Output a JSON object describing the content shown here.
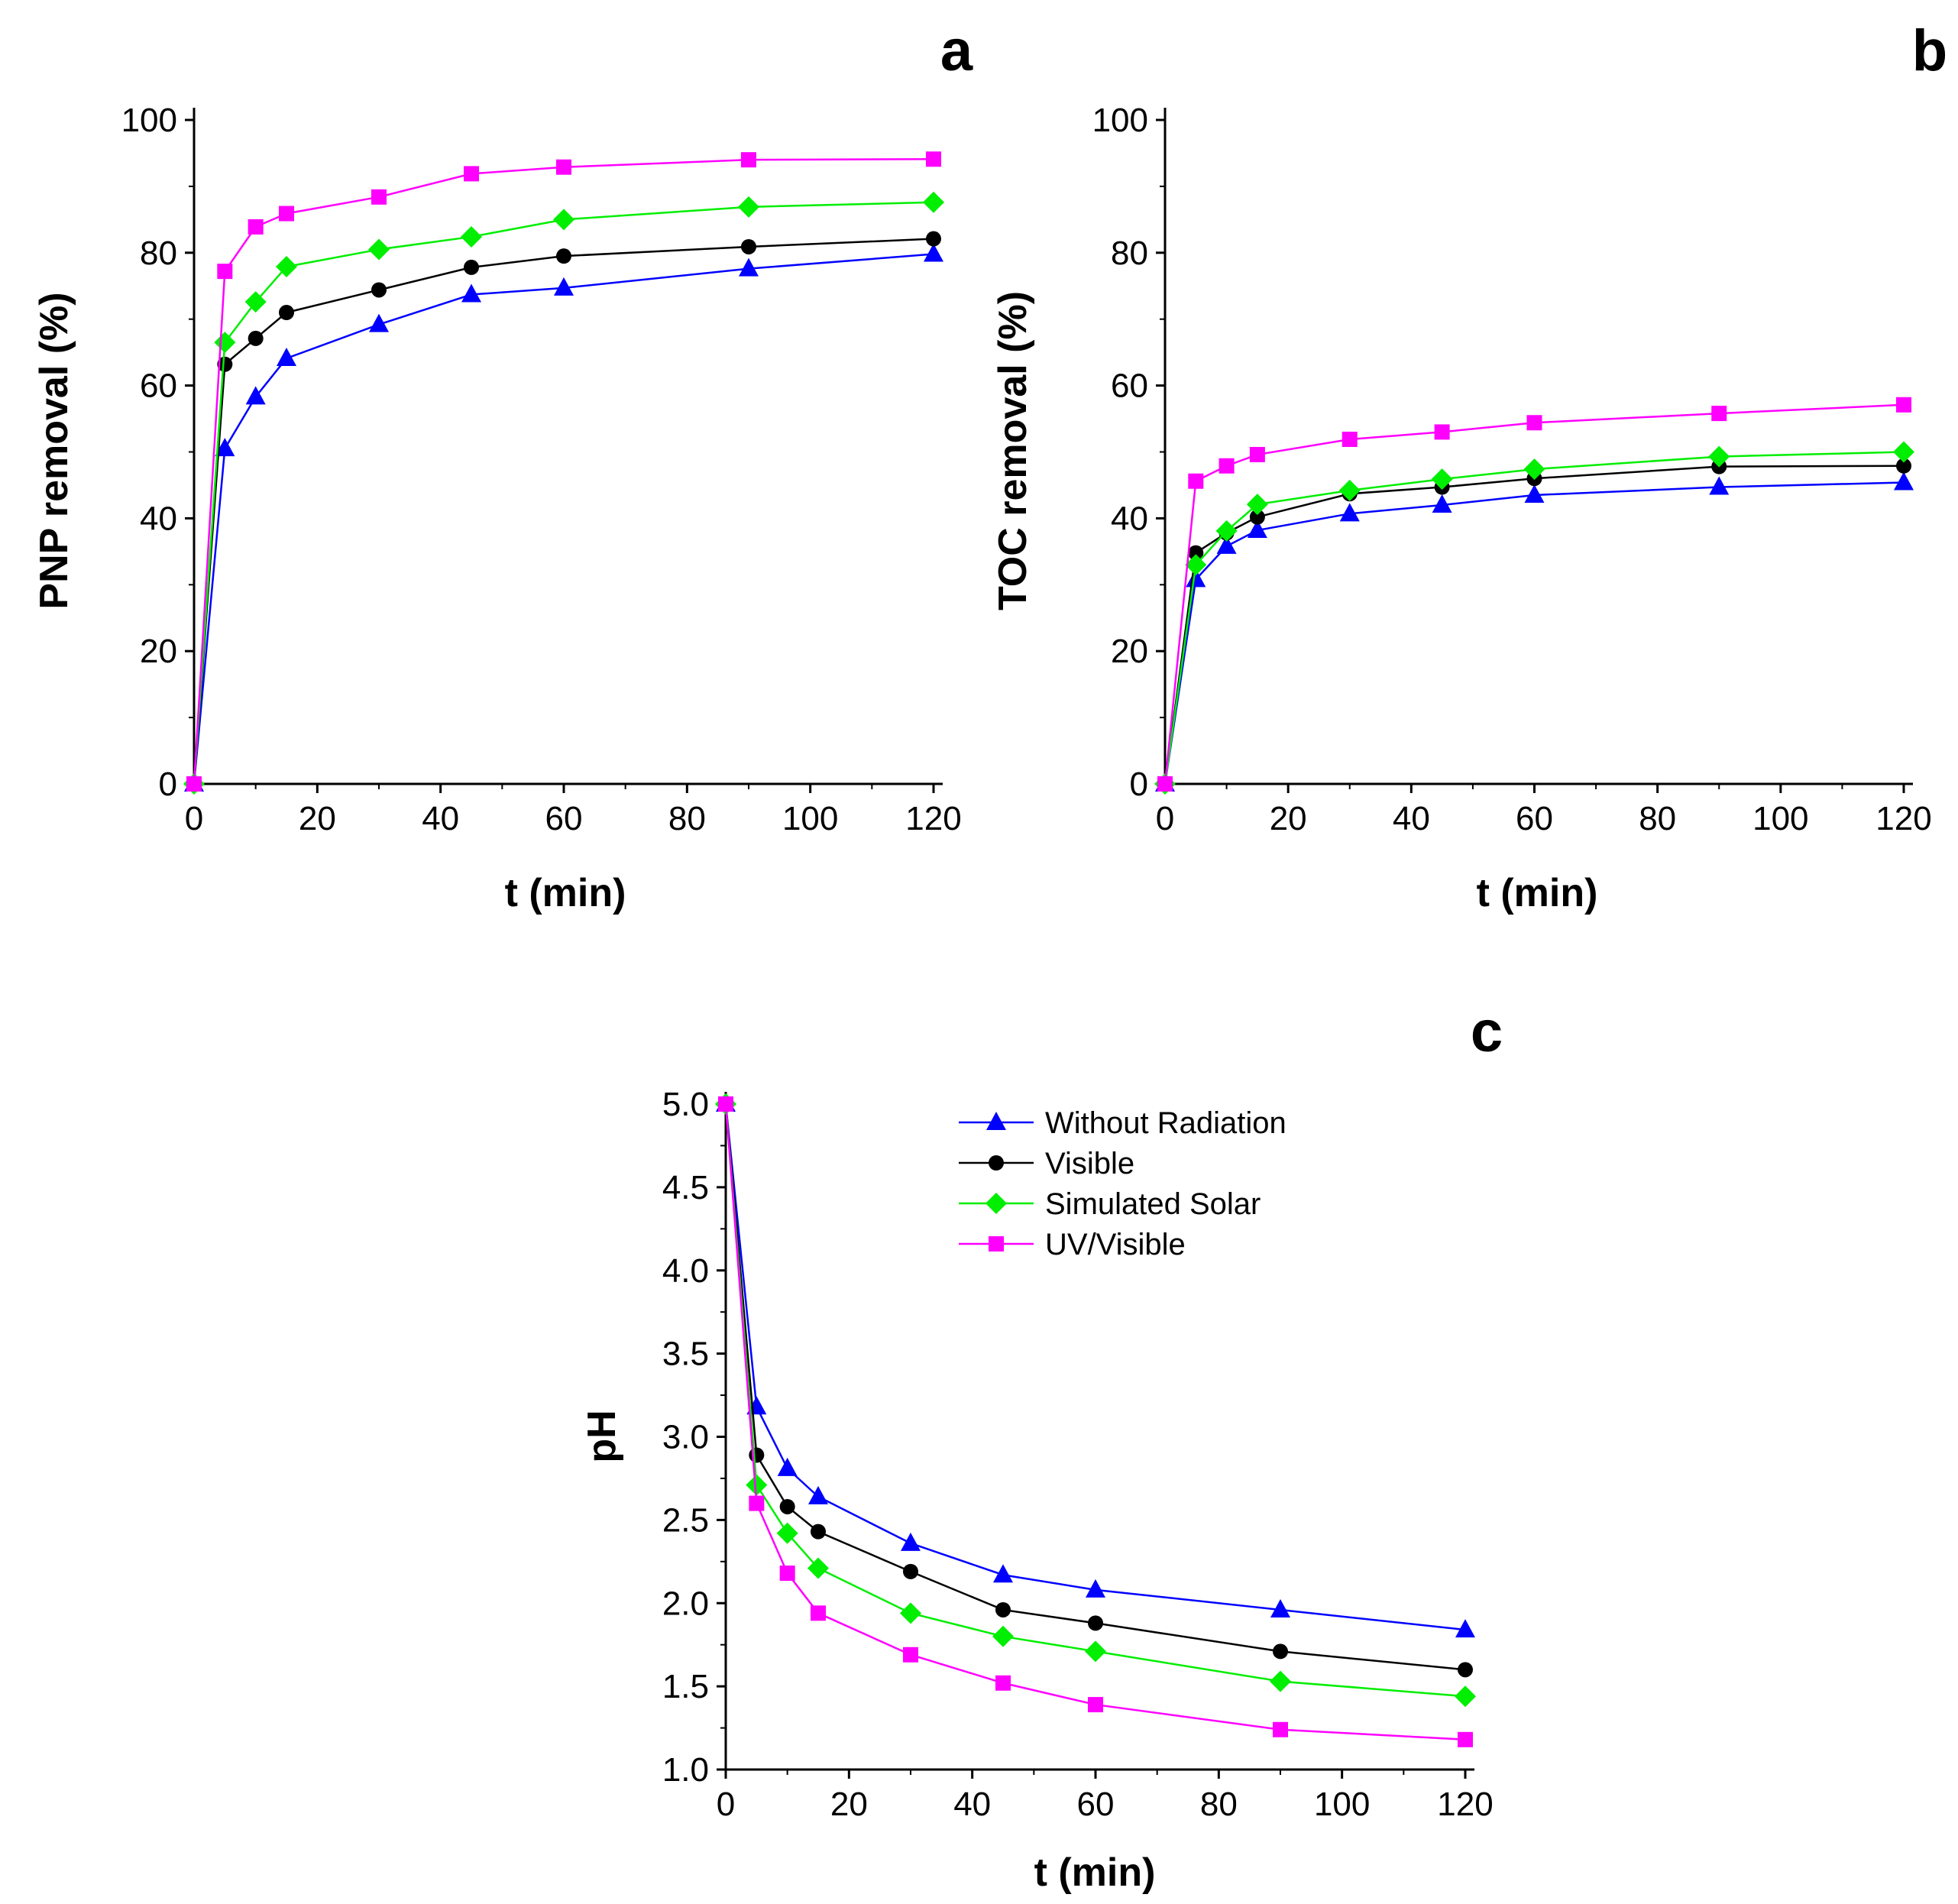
{
  "legend": [
    {
      "key": "without_radiation",
      "label": "Without Radiation"
    },
    {
      "key": "visible",
      "label": "Visible"
    },
    {
      "key": "simulated_solar",
      "label": "Simulated Solar"
    },
    {
      "key": "uv_visible",
      "label": "UV/Visible"
    }
  ],
  "series_styles": {
    "without_radiation": {
      "color": "#0000ff",
      "marker": "triangle"
    },
    "visible": {
      "color": "#000000",
      "marker": "circle"
    },
    "simulated_solar": {
      "color": "#00ee00",
      "marker": "diamond"
    },
    "uv_visible": {
      "color": "#ff00ff",
      "marker": "square"
    }
  },
  "chart_data": [
    {
      "id": "a",
      "panel_label": "a",
      "type": "line",
      "xlabel": "t (min)",
      "ylabel": "PNP removal (%)",
      "xlim": [
        0,
        120
      ],
      "ylim": [
        0,
        100
      ],
      "xticks": [
        0,
        20,
        40,
        60,
        80,
        100,
        120
      ],
      "yticks": [
        0,
        20,
        40,
        60,
        80,
        100
      ],
      "ytick_labels": [
        "0",
        "20",
        "40",
        "60",
        "80",
        "100"
      ],
      "x": [
        0,
        5,
        10,
        15,
        30,
        45,
        60,
        90,
        120
      ],
      "series": [
        {
          "key": "without_radiation",
          "name": "Without Radiation",
          "values": [
            0,
            50.5,
            58.3,
            64.1,
            69.2,
            73.7,
            74.7,
            77.6,
            79.8
          ]
        },
        {
          "key": "visible",
          "name": "Visible",
          "values": [
            0,
            63.2,
            67.1,
            71.0,
            74.4,
            77.8,
            79.5,
            80.9,
            82.1
          ]
        },
        {
          "key": "simulated_solar",
          "name": "Simulated Solar",
          "values": [
            0,
            66.5,
            72.6,
            77.9,
            80.5,
            82.4,
            85.0,
            86.9,
            87.6
          ]
        },
        {
          "key": "uv_visible",
          "name": "UV/Visible",
          "values": [
            0,
            77.2,
            83.9,
            85.9,
            88.4,
            91.9,
            92.9,
            94.0,
            94.1
          ]
        }
      ]
    },
    {
      "id": "b",
      "panel_label": "b",
      "type": "line",
      "xlabel": "t (min)",
      "ylabel": "TOC removal (%)",
      "xlim": [
        0,
        120
      ],
      "ylim": [
        0,
        100
      ],
      "xticks": [
        0,
        20,
        40,
        60,
        80,
        100,
        120
      ],
      "yticks": [
        0,
        20,
        40,
        60,
        80,
        100
      ],
      "ytick_labels": [
        "0",
        "20",
        "40",
        "60",
        "80",
        "100"
      ],
      "x": [
        0,
        5,
        10,
        15,
        30,
        45,
        60,
        90,
        120
      ],
      "series": [
        {
          "key": "without_radiation",
          "name": "Without Radiation",
          "values": [
            0,
            30.8,
            35.8,
            38.2,
            40.7,
            42.0,
            43.5,
            44.7,
            45.4
          ]
        },
        {
          "key": "visible",
          "name": "Visible",
          "values": [
            0,
            34.8,
            37.8,
            40.2,
            43.7,
            44.7,
            46.0,
            47.8,
            47.9
          ]
        },
        {
          "key": "simulated_solar",
          "name": "Simulated Solar",
          "values": [
            0,
            33.0,
            38.1,
            42.1,
            44.2,
            45.9,
            47.4,
            49.3,
            50.0
          ]
        },
        {
          "key": "uv_visible",
          "name": "UV/Visible",
          "values": [
            0,
            45.6,
            47.9,
            49.6,
            51.9,
            53.0,
            54.4,
            55.8,
            57.1
          ]
        }
      ]
    },
    {
      "id": "c",
      "panel_label": "c",
      "type": "line",
      "xlabel": "t (min)",
      "ylabel": "pH",
      "xlim": [
        0,
        120
      ],
      "ylim": [
        1.0,
        5.0
      ],
      "xticks": [
        0,
        20,
        40,
        60,
        80,
        100,
        120
      ],
      "yticks": [
        1.0,
        1.5,
        2.0,
        2.5,
        3.0,
        3.5,
        4.0,
        4.5,
        5.0
      ],
      "ytick_labels": [
        "1.0",
        "1.5",
        "2.0",
        "2.5",
        "3.0",
        "3.5",
        "4.0",
        "4.5",
        "5.0"
      ],
      "legend_position": "top-right",
      "x": [
        0,
        5,
        10,
        15,
        30,
        45,
        60,
        90,
        120
      ],
      "series": [
        {
          "key": "without_radiation",
          "name": "Without Radiation",
          "values": [
            5.0,
            3.18,
            2.81,
            2.64,
            2.36,
            2.17,
            2.08,
            1.96,
            1.84
          ]
        },
        {
          "key": "visible",
          "name": "Visible",
          "values": [
            5.0,
            2.89,
            2.58,
            2.43,
            2.19,
            1.96,
            1.88,
            1.71,
            1.6
          ]
        },
        {
          "key": "simulated_solar",
          "name": "Simulated Solar",
          "values": [
            5.0,
            2.71,
            2.42,
            2.21,
            1.94,
            1.8,
            1.71,
            1.53,
            1.44
          ]
        },
        {
          "key": "uv_visible",
          "name": "UV/Visible",
          "values": [
            5.0,
            2.6,
            2.18,
            1.94,
            1.69,
            1.52,
            1.39,
            1.24,
            1.18
          ]
        }
      ]
    }
  ]
}
